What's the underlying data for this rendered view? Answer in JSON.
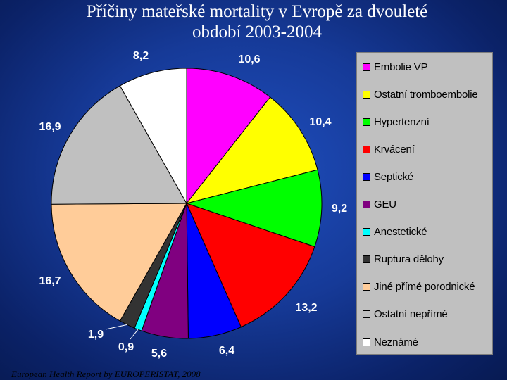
{
  "title_line1": "Příčiny mateřské mortality v Evropě za dvouleté",
  "title_line2": "období 2003-2004",
  "source": "European Health Report by EUROPERISTAT, 2008",
  "chart_data": {
    "type": "pie",
    "title": "Příčiny mateřské mortality v Evropě za dvouleté období 2003-2004",
    "slices": [
      {
        "label": "Embolie VP",
        "value": 10.6,
        "value_label": "10,6",
        "color": "#ff00ff"
      },
      {
        "label": "Ostatní tromboembolie",
        "value": 10.4,
        "value_label": "10,4",
        "color": "#ffff00"
      },
      {
        "label": "Hypertenzní",
        "value": 9.2,
        "value_label": "9,2",
        "color": "#00ff00"
      },
      {
        "label": "Krvácení",
        "value": 13.2,
        "value_label": "13,2",
        "color": "#ff0000"
      },
      {
        "label": "Septické",
        "value": 6.4,
        "value_label": "6,4",
        "color": "#0000ff"
      },
      {
        "label": "GEU",
        "value": 5.6,
        "value_label": "5,6",
        "color": "#800080"
      },
      {
        "label": "Anestetické",
        "value": 0.9,
        "value_label": "0,9",
        "color": "#00ffff"
      },
      {
        "label": "Ruptura dělohy",
        "value": 1.9,
        "value_label": "1,9",
        "color": "#333333"
      },
      {
        "label": "Jiné přímé porodnické",
        "value": 16.7,
        "value_label": "16,7",
        "color": "#ffcc99"
      },
      {
        "label": "Ostatní nepřímé",
        "value": 16.9,
        "value_label": "16,9",
        "color": "#c0c0c0"
      },
      {
        "label": "Neznámé",
        "value": 8.2,
        "value_label": "8,2",
        "color": "#ffffff"
      }
    ],
    "start_angle": "12 o'clock",
    "direction": "clockwise",
    "legend_position": "right"
  }
}
